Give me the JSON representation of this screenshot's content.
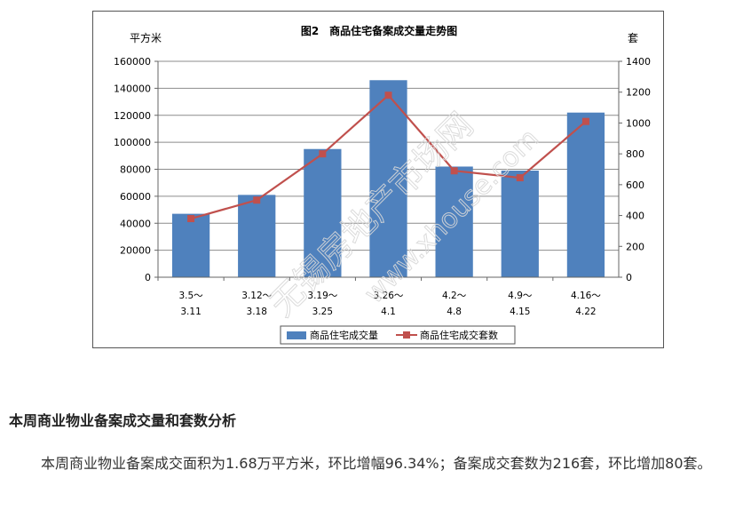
{
  "chart_data": {
    "type": "bar+line",
    "title": "图2　商品住宅备案成交量走势图",
    "y_left_label": "平方米",
    "y_right_label": "套",
    "y_left_lim": [
      0,
      160000
    ],
    "y_left_ticks": [
      "0",
      "20000",
      "40000",
      "60000",
      "80000",
      "100000",
      "120000",
      "140000",
      "160000"
    ],
    "y_right_lim": [
      0,
      1400
    ],
    "y_right_ticks": [
      "0",
      "200",
      "400",
      "600",
      "800",
      "1000",
      "1200",
      "1400"
    ],
    "categories": [
      [
        "3.5～",
        "3.11"
      ],
      [
        "3.12～",
        "3.18"
      ],
      [
        "3.19～",
        "3.25"
      ],
      [
        "3.26～",
        "4.1"
      ],
      [
        "4.2～",
        "4.8"
      ],
      [
        "4.9～",
        "4.15"
      ],
      [
        "4.16～",
        "4.22"
      ]
    ],
    "series": [
      {
        "name": "商品住宅成交量",
        "type": "bar",
        "axis": "left",
        "color": "#4f81bd",
        "values": [
          47000,
          61000,
          95000,
          146000,
          82000,
          79000,
          122000
        ]
      },
      {
        "name": "商品住宅成交套数",
        "type": "line",
        "axis": "right",
        "color": "#c0504d",
        "values": [
          380,
          500,
          800,
          1180,
          690,
          645,
          1010
        ]
      }
    ],
    "grid": true,
    "legend_position": "bottom"
  },
  "watermark": {
    "line1": "无锡房地产市场网",
    "line2": "www.xhouse.com"
  },
  "text": {
    "heading": "本周商业物业备案成交量和套数分析",
    "paragraph": "本周商业物业备案成交面积为1.68万平方米，环比增幅96.34%；备案成交套数为216套，环比增加80套。"
  }
}
